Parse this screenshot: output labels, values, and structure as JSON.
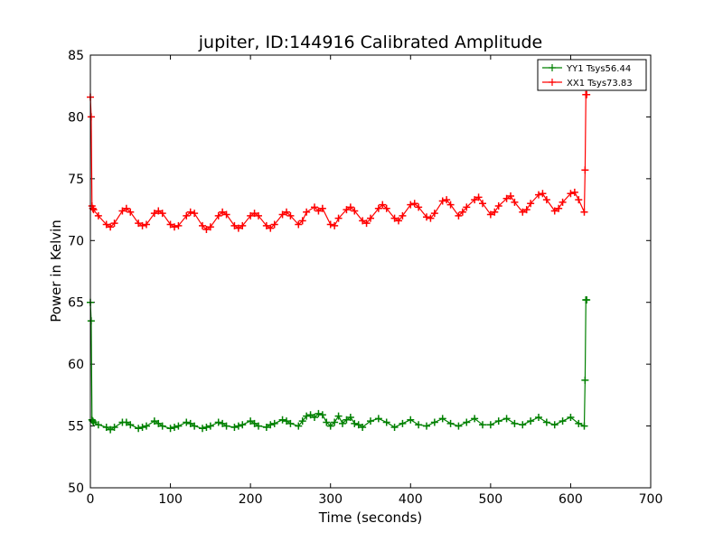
{
  "chart_data": {
    "type": "line",
    "title": "jupiter, ID:144916 Calibrated Amplitude",
    "xlabel": "Time (seconds)",
    "ylabel": "Power in Kelvin",
    "xlim": [
      0,
      700
    ],
    "ylim": [
      50,
      85
    ],
    "xticks": [
      0,
      100,
      200,
      300,
      400,
      500,
      600,
      700
    ],
    "yticks": [
      50,
      55,
      60,
      65,
      70,
      75,
      80,
      85
    ],
    "grid": false,
    "legend_position": "top-right",
    "marker": "plus",
    "series": [
      {
        "name": "YY1 Tsys56.44",
        "color": "#008000",
        "x": [
          0,
          1,
          2,
          3,
          4,
          10,
          20,
          25,
          30,
          40,
          45,
          50,
          60,
          65,
          70,
          80,
          85,
          90,
          100,
          105,
          110,
          120,
          125,
          130,
          140,
          145,
          150,
          160,
          165,
          170,
          180,
          185,
          190,
          200,
          205,
          210,
          220,
          225,
          230,
          240,
          245,
          250,
          260,
          265,
          270,
          275,
          280,
          285,
          290,
          295,
          300,
          305,
          310,
          315,
          320,
          325,
          330,
          335,
          340,
          350,
          360,
          370,
          380,
          390,
          400,
          410,
          420,
          430,
          440,
          450,
          460,
          470,
          480,
          490,
          500,
          510,
          520,
          530,
          540,
          550,
          560,
          570,
          580,
          590,
          600,
          610,
          617,
          618,
          619,
          620
        ],
        "y": [
          65.0,
          63.5,
          55.5,
          55.4,
          55.3,
          55.1,
          54.9,
          54.7,
          54.9,
          55.3,
          55.3,
          55.1,
          54.8,
          54.9,
          55.0,
          55.4,
          55.2,
          55.0,
          54.8,
          54.9,
          55.0,
          55.3,
          55.2,
          55.0,
          54.8,
          54.9,
          55.0,
          55.3,
          55.2,
          55.0,
          54.9,
          55.0,
          55.1,
          55.4,
          55.2,
          55.0,
          54.9,
          55.1,
          55.2,
          55.5,
          55.4,
          55.2,
          55.0,
          55.4,
          55.8,
          55.9,
          55.7,
          56.0,
          55.9,
          55.3,
          55.0,
          55.3,
          55.8,
          55.2,
          55.5,
          55.7,
          55.2,
          55.1,
          54.9,
          55.4,
          55.6,
          55.3,
          54.9,
          55.2,
          55.5,
          55.1,
          55.0,
          55.3,
          55.6,
          55.2,
          55.0,
          55.3,
          55.6,
          55.1,
          55.1,
          55.4,
          55.6,
          55.2,
          55.1,
          55.4,
          55.7,
          55.3,
          55.1,
          55.4,
          55.7,
          55.2,
          55.0,
          58.7,
          65.2,
          65.2
        ]
      },
      {
        "name": "XX1 Tsys73.83",
        "color": "#ff0000",
        "x": [
          0,
          1,
          2,
          3,
          4,
          10,
          20,
          25,
          30,
          40,
          45,
          50,
          60,
          65,
          70,
          80,
          85,
          90,
          100,
          105,
          110,
          120,
          125,
          130,
          140,
          145,
          150,
          160,
          165,
          170,
          180,
          185,
          190,
          200,
          205,
          210,
          220,
          225,
          230,
          240,
          245,
          250,
          260,
          265,
          270,
          280,
          285,
          290,
          300,
          305,
          310,
          320,
          325,
          330,
          340,
          345,
          350,
          360,
          365,
          370,
          380,
          385,
          390,
          400,
          405,
          410,
          420,
          425,
          430,
          440,
          445,
          450,
          460,
          465,
          470,
          480,
          485,
          490,
          500,
          505,
          510,
          520,
          525,
          530,
          540,
          545,
          550,
          560,
          565,
          570,
          580,
          585,
          590,
          600,
          605,
          610,
          617,
          618,
          619,
          620
        ],
        "y": [
          81.6,
          80.0,
          72.8,
          72.6,
          72.5,
          72.0,
          71.3,
          71.1,
          71.4,
          72.4,
          72.6,
          72.3,
          71.4,
          71.2,
          71.3,
          72.2,
          72.4,
          72.2,
          71.3,
          71.1,
          71.2,
          72.0,
          72.3,
          72.2,
          71.2,
          70.9,
          71.1,
          72.0,
          72.3,
          72.1,
          71.2,
          71.0,
          71.2,
          72.0,
          72.2,
          72.0,
          71.2,
          71.0,
          71.3,
          72.1,
          72.3,
          72.0,
          71.3,
          71.6,
          72.3,
          72.7,
          72.4,
          72.6,
          71.3,
          71.2,
          71.8,
          72.5,
          72.7,
          72.4,
          71.6,
          71.4,
          71.8,
          72.6,
          72.9,
          72.6,
          71.8,
          71.6,
          72.0,
          72.9,
          73.0,
          72.7,
          71.9,
          71.8,
          72.2,
          73.2,
          73.3,
          72.9,
          72.0,
          72.3,
          72.7,
          73.3,
          73.5,
          73.0,
          72.1,
          72.3,
          72.8,
          73.4,
          73.6,
          73.1,
          72.3,
          72.5,
          73.0,
          73.7,
          73.8,
          73.3,
          72.4,
          72.6,
          73.1,
          73.8,
          73.9,
          73.3,
          72.3,
          75.7,
          81.8,
          81.8
        ]
      }
    ]
  }
}
